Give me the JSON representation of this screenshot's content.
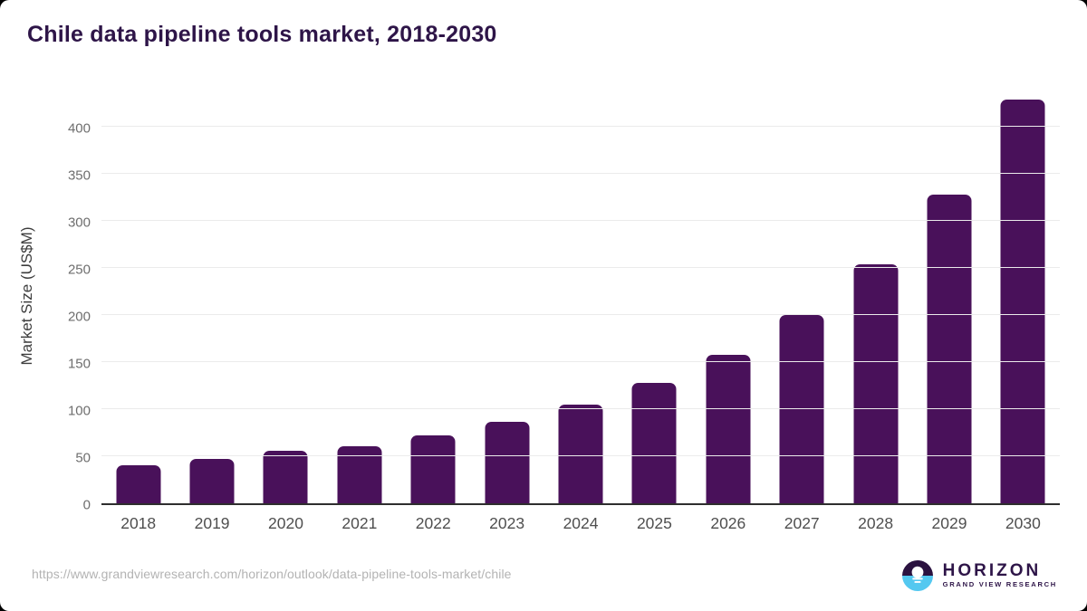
{
  "chart_data": {
    "type": "bar",
    "title": "Chile data pipeline tools market, 2018-2030",
    "categories": [
      "2018",
      "2019",
      "2020",
      "2021",
      "2022",
      "2023",
      "2024",
      "2025",
      "2026",
      "2027",
      "2028",
      "2029",
      "2030"
    ],
    "values": [
      40,
      47,
      56,
      61,
      72,
      87,
      105,
      128,
      158,
      200,
      254,
      328,
      429
    ],
    "xlabel": "",
    "ylabel": "Market Size (US$M)",
    "ylim": [
      0,
      445
    ],
    "yticks": [
      0,
      50,
      100,
      150,
      200,
      250,
      300,
      350,
      400
    ],
    "grid": true,
    "legend": "none",
    "bar_color": "#49115A"
  },
  "footer": {
    "source_url": "https://www.grandviewresearch.com/horizon/outlook/data-pipeline-tools-market/chile",
    "logo": {
      "brand": "HORIZON",
      "sub_brand": "GRAND VIEW RESEARCH"
    }
  },
  "colors": {
    "bar": "#49115A",
    "title_purple": "#2E1548",
    "logo_blue": "#54C8F0",
    "gridline": "#EBEBEB",
    "axis_line": "#2E2E2E",
    "url_gray": "#B3B3B3"
  }
}
